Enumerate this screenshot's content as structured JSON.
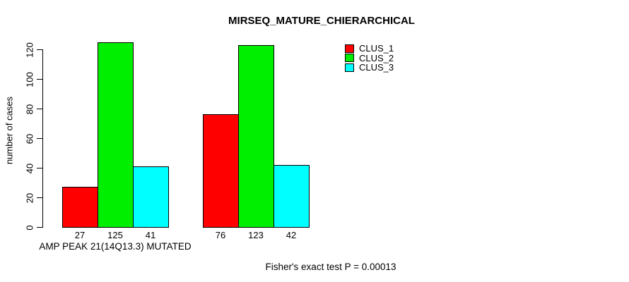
{
  "chart_data": {
    "type": "bar",
    "title": "MIRSEQ_MATURE_CHIERARCHICAL",
    "ylabel": "number of cases",
    "xlabel": "AMP PEAK 21(14Q13.3) MUTATED",
    "categories": [
      "AMP PEAK 21(14Q13.3) MUTATED",
      ""
    ],
    "series": [
      {
        "name": "CLUS_1",
        "color": "#ff0000",
        "values": [
          27,
          76
        ]
      },
      {
        "name": "CLUS_2",
        "color": "#00ee00",
        "values": [
          125,
          123
        ]
      },
      {
        "name": "CLUS_3",
        "color": "#00ffff",
        "values": [
          41,
          42
        ]
      }
    ],
    "yticks": [
      0,
      20,
      40,
      60,
      80,
      100,
      120
    ],
    "ylim": [
      0,
      125
    ],
    "grid": false,
    "legend_position": "top-right",
    "bar_value_labels_shown": true,
    "annotation": "Fisher's exact test P = 0.00013",
    "colors": {
      "background": "#ffffff",
      "axis": "#000000",
      "text": "#000000",
      "bar_border": "#000000"
    }
  }
}
